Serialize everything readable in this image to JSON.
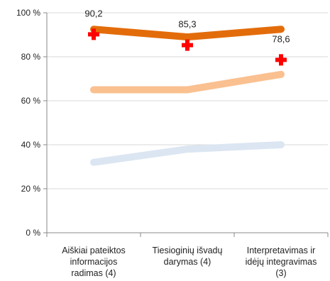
{
  "chart_data": {
    "type": "line",
    "title": "",
    "xlabel": "",
    "ylabel": "",
    "ylim": [
      0,
      100
    ],
    "yticks": [
      0,
      20,
      40,
      60,
      80,
      100
    ],
    "ytick_labels": [
      "0 %",
      "20 %",
      "40 %",
      "60 %",
      "80 %",
      "100 %"
    ],
    "grid": "horizontal",
    "categories": [
      [
        "Aiškiai pateiktos",
        "informacijos",
        "radimas (4)"
      ],
      [
        "Tiesioginių išvadų",
        "darymas (4)"
      ],
      [
        "Interpretavimas ir",
        "idėjų integravimas",
        "(3)"
      ]
    ],
    "series": [
      {
        "type": "line",
        "color": "#E36C0A",
        "values": [
          92.5,
          89,
          92.5
        ]
      },
      {
        "type": "line",
        "color": "#FAC090",
        "values": [
          65,
          65,
          72
        ]
      },
      {
        "type": "line",
        "color": "#DCE6F2",
        "values": [
          32,
          38,
          40
        ]
      },
      {
        "type": "marker",
        "marker": "plus",
        "color": "#FF0000",
        "values": [
          90.2,
          85.3,
          78.6
        ],
        "labels": [
          "90,2",
          "85,3",
          "78,6"
        ]
      }
    ]
  }
}
